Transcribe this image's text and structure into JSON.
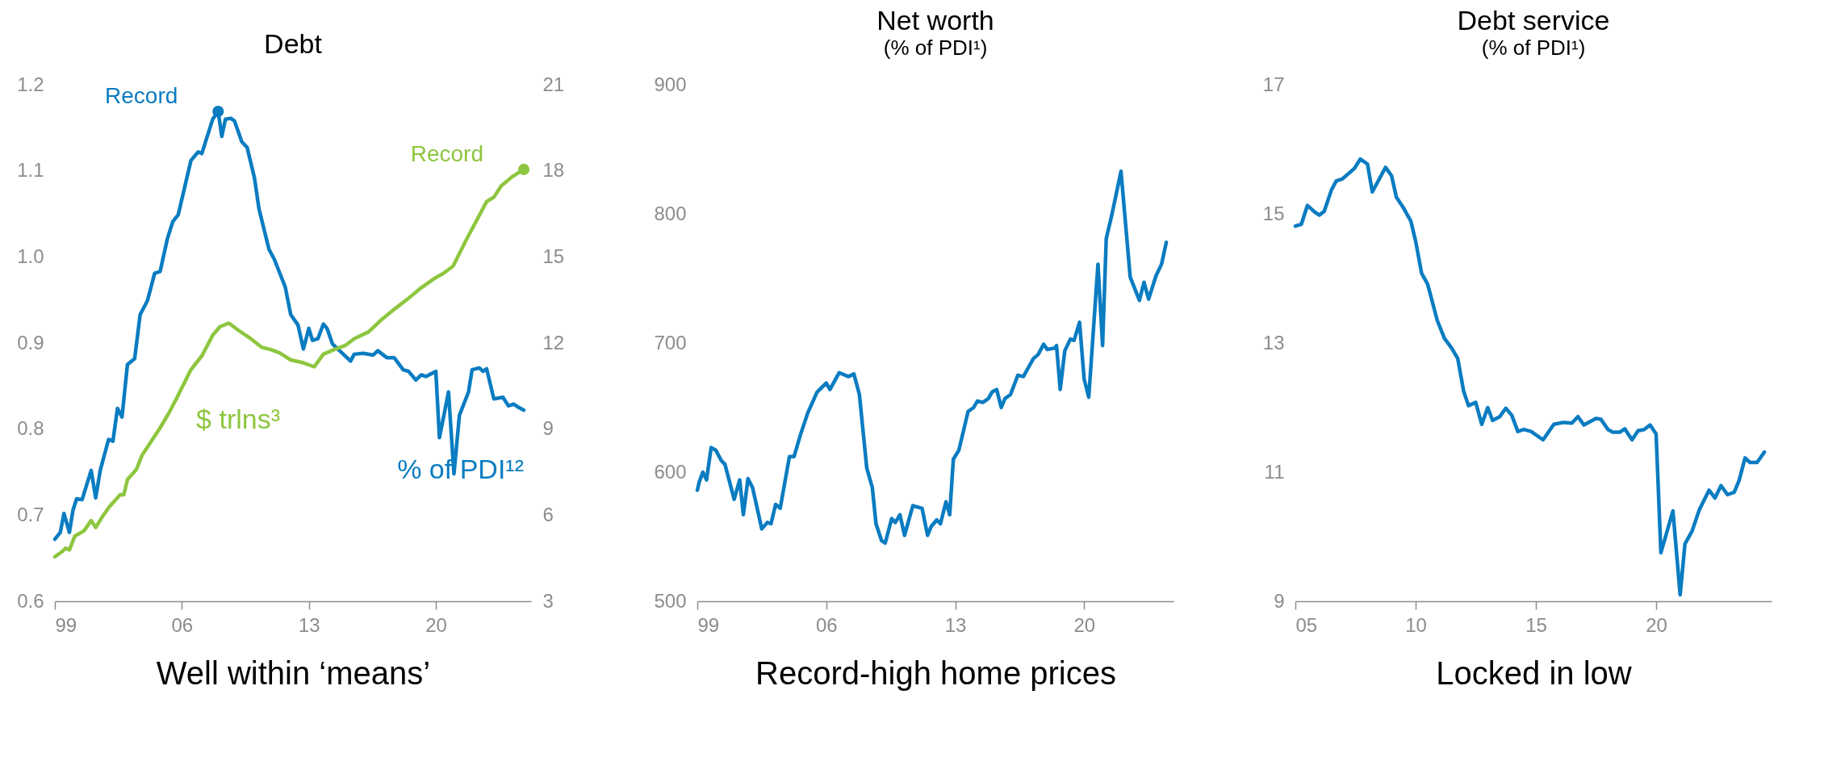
{
  "chart_data": [
    {
      "type": "line",
      "title": "Debt",
      "xlabel": "Well within ‘means’",
      "line_style": "solid",
      "xlim": [
        1999,
        2025.25
      ],
      "xticks": [
        {
          "value": 1999,
          "label": "99"
        },
        {
          "value": 2006,
          "label": "06"
        },
        {
          "value": 2013,
          "label": "13"
        },
        {
          "value": 2020,
          "label": "20"
        }
      ],
      "ylim": [
        0.6,
        1.2
      ],
      "yticks": [
        0.6,
        0.7,
        0.8,
        0.9,
        {
          "value": 1.0,
          "label": "1.0"
        },
        1.1,
        1.2
      ],
      "y2lim": [
        3,
        21
      ],
      "y2ticks": [
        3,
        6,
        9,
        12,
        15,
        18,
        21
      ],
      "series": [
        {
          "name": "% of PDI¹²",
          "color": "#0a7cc1",
          "x": [
            1999.0,
            1999.3,
            1999.5,
            1999.8,
            2000.0,
            2000.2,
            2000.5,
            2001.0,
            2001.25,
            2001.5,
            2001.96,
            2002.2,
            2002.45,
            2002.7,
            2003.0,
            2003.4,
            2003.7,
            2004.1,
            2004.5,
            2004.8,
            2005.2,
            2005.5,
            2005.8,
            2006.5,
            2006.9,
            2007.1,
            2007.7,
            2008.0,
            2008.2,
            2008.4,
            2008.7,
            2008.9,
            2009.3,
            2009.6,
            2010.0,
            2010.25,
            2010.8,
            2011.1,
            2011.7,
            2012.0,
            2012.4,
            2012.7,
            2013.0,
            2013.2,
            2013.5,
            2013.8,
            2014.0,
            2014.3,
            2014.7,
            2015.3,
            2015.5,
            2016.0,
            2016.55,
            2016.8,
            2017.3,
            2017.7,
            2018.2,
            2018.5,
            2018.9,
            2019.2,
            2019.45,
            2020.0,
            2020.2,
            2020.7,
            2021.0,
            2021.3,
            2021.8,
            2022.0,
            2022.4,
            2022.6,
            2022.8,
            2023.2,
            2023.7,
            2024.0,
            2024.3,
            2024.5,
            2024.85
          ],
          "values": [
            0.672,
            0.68,
            0.702,
            0.68,
            0.706,
            0.719,
            0.718,
            0.752,
            0.72,
            0.752,
            0.788,
            0.786,
            0.824,
            0.814,
            0.875,
            0.882,
            0.933,
            0.949,
            0.981,
            0.983,
            1.021,
            1.041,
            1.049,
            1.112,
            1.122,
            1.12,
            1.16,
            1.169,
            1.14,
            1.16,
            1.161,
            1.158,
            1.134,
            1.127,
            1.092,
            1.056,
            1.009,
            0.997,
            0.965,
            0.933,
            0.921,
            0.893,
            0.917,
            0.903,
            0.905,
            0.922,
            0.917,
            0.899,
            0.891,
            0.879,
            0.887,
            0.888,
            0.886,
            0.891,
            0.883,
            0.883,
            0.869,
            0.867,
            0.857,
            0.863,
            0.861,
            0.867,
            0.79,
            0.843,
            0.748,
            0.816,
            0.843,
            0.869,
            0.871,
            0.867,
            0.87,
            0.835,
            0.837,
            0.827,
            0.829,
            0.826,
            0.822
          ]
        },
        {
          "name": "$ trlns³",
          "color": "#8dc63f",
          "axis": "y2",
          "x": [
            1999.0,
            1999.4,
            1999.6,
            1999.8,
            2000.1,
            2000.6,
            2001.0,
            2001.25,
            2001.6,
            2002.0,
            2002.6,
            2002.8,
            2003.0,
            2003.5,
            2003.8,
            2004.3,
            2004.8,
            2005.3,
            2005.7,
            2006.5,
            2007.1,
            2007.7,
            2008.1,
            2008.6,
            2009.1,
            2009.8,
            2010.4,
            2010.9,
            2011.4,
            2012.0,
            2012.7,
            2013.3,
            2013.8,
            2014.4,
            2015.0,
            2015.5,
            2016.3,
            2017.0,
            2017.8,
            2018.5,
            2019.1,
            2020.0,
            2020.4,
            2020.95,
            2021.7,
            2022.3,
            2022.8,
            2023.2,
            2023.6,
            2024.2,
            2024.85
          ],
          "values": [
            4.55,
            4.73,
            4.85,
            4.79,
            5.27,
            5.45,
            5.81,
            5.57,
            5.93,
            6.29,
            6.71,
            6.71,
            7.24,
            7.6,
            8.08,
            8.56,
            9.04,
            9.58,
            10.06,
            11.07,
            11.55,
            12.27,
            12.57,
            12.69,
            12.45,
            12.15,
            11.85,
            11.77,
            11.65,
            11.41,
            11.31,
            11.17,
            11.61,
            11.77,
            11.91,
            12.15,
            12.39,
            12.81,
            13.22,
            13.56,
            13.88,
            14.28,
            14.42,
            14.68,
            15.62,
            16.33,
            16.93,
            17.08,
            17.47,
            17.79,
            18.05
          ]
        }
      ],
      "annotations": [
        "Record",
        "Record"
      ]
    },
    {
      "type": "line",
      "title": "Net worth",
      "subtitle": "(% of PDI¹)",
      "xlabel": "Record-high home prices",
      "line_style": "solid",
      "xlim": [
        1999,
        2024.85
      ],
      "xticks": [
        {
          "value": 1999,
          "label": "99"
        },
        {
          "value": 2006,
          "label": "06"
        },
        {
          "value": 2013,
          "label": "13"
        },
        {
          "value": 2020,
          "label": "20"
        }
      ],
      "ylim": [
        500,
        900
      ],
      "yticks": [
        500,
        600,
        700,
        800,
        900
      ],
      "series": [
        {
          "color": "#0a7cc1",
          "x": [
            1999.0,
            1999.1,
            1999.3,
            1999.5,
            1999.75,
            2000.0,
            2000.3,
            2000.5,
            2001.0,
            2001.3,
            2001.5,
            2001.75,
            2002.0,
            2002.5,
            2002.8,
            2003.0,
            2003.25,
            2003.5,
            2004.0,
            2004.25,
            2004.6,
            2005.0,
            2005.5,
            2006.0,
            2006.2,
            2006.7,
            2007.2,
            2007.5,
            2007.8,
            2008.2,
            2008.5,
            2008.7,
            2009.0,
            2009.2,
            2009.55,
            2009.75,
            2010.0,
            2010.25,
            2010.7,
            2011.2,
            2011.5,
            2011.7,
            2012.0,
            2012.2,
            2012.5,
            2012.7,
            2012.9,
            2013.2,
            2013.7,
            2014.0,
            2014.2,
            2014.5,
            2014.8,
            2015.0,
            2015.25,
            2015.5,
            2015.7,
            2016.0,
            2016.4,
            2016.7,
            2017.25,
            2017.5,
            2017.8,
            2018.0,
            2018.4,
            2018.5,
            2018.7,
            2018.95,
            2019.25,
            2019.45,
            2019.75,
            2020.0,
            2020.25,
            2020.75,
            2021.0,
            2021.2,
            2021.5,
            2022.0,
            2022.5,
            2023.0,
            2023.25,
            2023.5,
            2023.9,
            2024.2,
            2024.46
          ],
          "values": [
            586,
            592,
            600,
            594,
            619,
            617,
            609,
            606,
            579,
            594,
            567,
            595,
            588,
            556,
            561,
            560,
            575,
            572,
            612,
            612,
            629,
            646,
            662,
            669,
            664,
            677,
            674,
            676,
            660,
            603,
            588,
            560,
            547,
            545,
            564,
            561,
            567,
            551,
            574,
            572,
            551,
            558,
            563,
            560,
            577,
            567,
            610,
            617,
            647,
            650,
            655,
            654,
            657,
            662,
            664,
            650,
            657,
            660,
            675,
            674,
            688,
            691,
            699,
            695,
            696,
            698,
            664,
            694,
            703,
            702,
            716,
            672,
            658,
            761,
            698,
            781,
            799,
            833,
            751,
            733,
            747,
            734,
            752,
            761,
            778
          ]
        }
      ]
    },
    {
      "type": "line",
      "title": "Debt service",
      "subtitle": "(% of PDI¹)",
      "xlabel": "Locked in low",
      "line_style": "solid",
      "xlim": [
        2005,
        2024.8
      ],
      "xticks": [
        {
          "value": 2005,
          "label": "05"
        },
        {
          "value": 2010,
          "label": "10"
        },
        {
          "value": 2015,
          "label": "15"
        },
        {
          "value": 2020,
          "label": "20"
        }
      ],
      "ylim": [
        9,
        17
      ],
      "yticks": [
        9,
        11,
        13,
        15,
        17
      ],
      "series": [
        {
          "color": "#0a7cc1",
          "x": [
            2005.0,
            2005.25,
            2005.5,
            2005.8,
            2006.0,
            2006.2,
            2006.5,
            2006.7,
            2006.95,
            2007.2,
            2007.47,
            2007.7,
            2008.0,
            2008.2,
            2008.75,
            2009.0,
            2009.2,
            2009.5,
            2009.8,
            2010.0,
            2010.25,
            2010.5,
            2010.9,
            2011.2,
            2011.5,
            2011.75,
            2012.0,
            2012.2,
            2012.5,
            2012.75,
            2013.0,
            2013.2,
            2013.5,
            2013.75,
            2014.0,
            2014.25,
            2014.5,
            2014.8,
            2015.3,
            2015.75,
            2016.15,
            2016.5,
            2016.75,
            2017.0,
            2017.5,
            2017.7,
            2018.0,
            2018.2,
            2018.5,
            2018.7,
            2019.0,
            2019.25,
            2019.5,
            2019.75,
            2020.0,
            2020.2,
            2020.7,
            2021.0,
            2021.2,
            2021.5,
            2021.8,
            2022.2,
            2022.45,
            2022.7,
            2022.97,
            2023.25,
            2023.45,
            2023.7,
            2023.9,
            2024.2,
            2024.5
          ],
          "values": [
            14.81,
            14.84,
            15.13,
            15.03,
            14.98,
            15.04,
            15.37,
            15.51,
            15.54,
            15.62,
            15.71,
            15.85,
            15.77,
            15.34,
            15.72,
            15.59,
            15.26,
            15.09,
            14.89,
            14.58,
            14.08,
            13.91,
            13.35,
            13.07,
            12.92,
            12.76,
            12.25,
            12.03,
            12.08,
            11.74,
            12.0,
            11.8,
            11.86,
            11.99,
            11.88,
            11.63,
            11.66,
            11.63,
            11.5,
            11.74,
            11.77,
            11.76,
            11.86,
            11.73,
            11.83,
            11.82,
            11.66,
            11.62,
            11.62,
            11.67,
            11.5,
            11.64,
            11.66,
            11.73,
            11.59,
            9.75,
            10.4,
            9.1,
            9.89,
            10.09,
            10.42,
            10.72,
            10.6,
            10.79,
            10.65,
            10.69,
            10.87,
            11.22,
            11.15,
            11.15,
            11.31
          ]
        }
      ]
    }
  ]
}
